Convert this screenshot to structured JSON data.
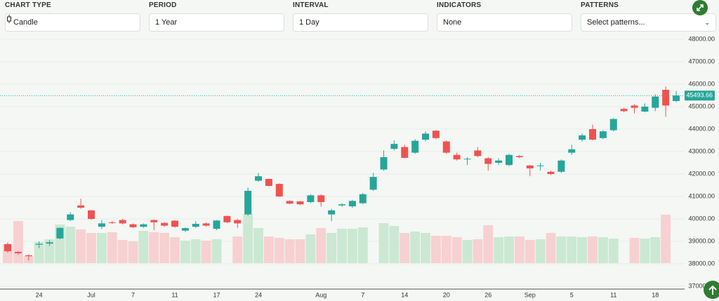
{
  "controls": [
    {
      "label": "CHART TYPE",
      "value": "Candle"
    },
    {
      "label": "PERIOD",
      "value": "1 Year"
    },
    {
      "label": "INTERVAL",
      "value": "1 Day"
    },
    {
      "label": "INDICATORS",
      "value": "None"
    },
    {
      "label": "PATTERNS",
      "value": "Select patterns..."
    }
  ],
  "chart_data": {
    "type": "candlestick",
    "categories": [
      null,
      null,
      null,
      "24",
      null,
      null,
      null,
      null,
      "Jul",
      null,
      null,
      null,
      "7",
      null,
      null,
      null,
      "11",
      null,
      null,
      null,
      "17",
      null,
      null,
      null,
      "24",
      null,
      null,
      null,
      null,
      null,
      "Aug",
      null,
      null,
      null,
      "7",
      null,
      null,
      null,
      "14",
      null,
      null,
      null,
      "20",
      null,
      null,
      null,
      "26",
      null,
      null,
      null,
      "Sep",
      null,
      null,
      null,
      "5",
      null,
      null,
      null,
      "11",
      null,
      null,
      null,
      "18",
      null,
      null
    ],
    "open": [
      38880,
      38530,
      38380,
      38850,
      38900,
      39130,
      39950,
      40600,
      40380,
      39650,
      39850,
      39950,
      39760,
      39650,
      39950,
      39820,
      39920,
      39480,
      39650,
      39800,
      39560,
      40130,
      39950,
      40200,
      41700,
      41780,
      41560,
      40800,
      40780,
      40750,
      41050,
      40200,
      40600,
      40560,
      40700,
      41300,
      42200,
      43120,
      43200,
      42950,
      43530,
      43930,
      43450,
      42850,
      42650,
      43050,
      42700,
      42500,
      42400,
      42800,
      42380,
      42350,
      42100,
      42100,
      42950,
      43530,
      44000,
      43600,
      43950,
      44900,
      45050,
      44780,
      44950,
      45750,
      45250
    ],
    "high": [
      38950,
      38560,
      38420,
      39000,
      39050,
      39620,
      40300,
      40900,
      40400,
      39950,
      39900,
      40000,
      39800,
      39800,
      39980,
      39850,
      39950,
      39620,
      39900,
      39850,
      39950,
      40150,
      40000,
      41400,
      42050,
      41800,
      41580,
      40820,
      40800,
      41100,
      41100,
      40450,
      40700,
      40850,
      41150,
      42050,
      43050,
      43500,
      43300,
      43550,
      43900,
      43950,
      43500,
      42950,
      42750,
      43200,
      42750,
      42700,
      42900,
      42850,
      42400,
      42500,
      42150,
      42650,
      43300,
      43800,
      44200,
      43950,
      44480,
      44950,
      45100,
      45150,
      45550,
      45900,
      45700
    ],
    "low": [
      38500,
      38400,
      38150,
      38700,
      38800,
      39100,
      39900,
      40450,
      39950,
      39550,
      39780,
      39750,
      39600,
      39600,
      39500,
      39650,
      39600,
      39420,
      39600,
      39650,
      39500,
      39820,
      39600,
      40150,
      41650,
      41450,
      40980,
      40650,
      40620,
      40700,
      40550,
      39900,
      40550,
      40500,
      40650,
      41250,
      42150,
      43050,
      42700,
      42900,
      43450,
      43550,
      42900,
      42600,
      42400,
      42750,
      42150,
      42400,
      42350,
      42700,
      41900,
      42150,
      41950,
      42050,
      42850,
      43450,
      43500,
      43550,
      43900,
      44750,
      44700,
      44750,
      44800,
      44550,
      45200
    ],
    "close": [
      38560,
      38470,
      38340,
      38890,
      38960,
      39600,
      40200,
      40500,
      40000,
      39800,
      39820,
      39800,
      39630,
      39760,
      39850,
      39700,
      39650,
      39590,
      39780,
      39700,
      39930,
      39850,
      39800,
      41250,
      41900,
      41470,
      41000,
      40680,
      40650,
      41050,
      40750,
      40380,
      40650,
      40800,
      41100,
      41870,
      42750,
      43340,
      42720,
      43480,
      43800,
      43600,
      42950,
      42650,
      42680,
      42800,
      42450,
      42600,
      42850,
      42750,
      42250,
      42380,
      42000,
      42600,
      43100,
      43720,
      43530,
      43900,
      44450,
      44800,
      44950,
      45000,
      45450,
      45050,
      45493.66
    ],
    "volume": [
      27,
      60,
      10,
      30,
      34,
      55,
      52,
      48,
      43,
      43,
      44,
      33,
      31,
      46,
      44,
      43,
      37,
      32,
      34,
      32,
      34,
      0,
      38,
      70,
      50,
      38,
      36,
      34,
      34,
      41,
      50,
      43,
      49,
      49,
      51,
      0,
      57,
      53,
      43,
      45,
      43,
      39,
      39,
      37,
      33,
      34,
      54,
      37,
      38,
      38,
      33,
      34,
      43,
      38,
      38,
      37,
      38,
      37,
      35,
      0,
      36,
      35,
      37,
      69,
      0
    ],
    "up_color": "#26a69a",
    "down_color": "#ef5350",
    "up_volume_color": "#cbe8d3",
    "down_volume_color": "#f7d0d2",
    "last_price": 45493.66,
    "ylim": [
      36900,
      48200
    ],
    "yticks": [
      {
        "value": 48000,
        "label": "48000.00"
      },
      {
        "value": 47000,
        "label": "47000.00"
      },
      {
        "value": 46000,
        "label": "46000.00"
      },
      {
        "value": 45000,
        "label": "45000.00"
      },
      {
        "value": 44000,
        "label": "44000.00"
      },
      {
        "value": 43000,
        "label": "43000.00"
      },
      {
        "value": 42000,
        "label": "42000.00"
      },
      {
        "value": 41000,
        "label": "41000.00"
      },
      {
        "value": 40000,
        "label": "40000.00"
      },
      {
        "value": 39000,
        "label": "39000.00"
      },
      {
        "value": 38000,
        "label": "38000.00"
      },
      {
        "value": 37000,
        "label": "37000.00"
      }
    ],
    "grid": true
  }
}
